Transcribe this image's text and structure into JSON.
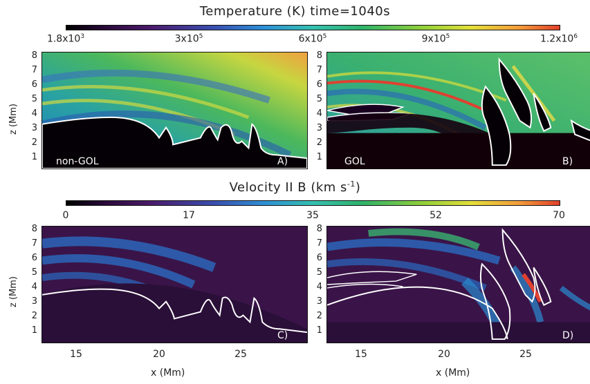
{
  "top": {
    "title": "Temperature (K) time=1040s",
    "ticks": [
      {
        "base": "1.8x10",
        "exp": "3"
      },
      {
        "base": "3x10",
        "exp": "5"
      },
      {
        "base": "6x10",
        "exp": "5"
      },
      {
        "base": "9x10",
        "exp": "5"
      },
      {
        "base": "1.2x10",
        "exp": "6"
      }
    ]
  },
  "bottom": {
    "title": "Velocity II B (km s",
    "title_exp": "-1",
    "title_end": ")",
    "ticks": [
      "0",
      "17",
      "35",
      "52",
      "70"
    ]
  },
  "panels": {
    "a_label": "non-GOL",
    "a_tag": "A)",
    "b_label": "GOL",
    "b_tag": "B)",
    "c_tag": "C)",
    "d_tag": "D)"
  },
  "axes": {
    "y_label": "z (Mm)",
    "x_label": "x (Mm)",
    "y_ticks": [
      "8",
      "7",
      "6",
      "5",
      "4",
      "3",
      "2",
      "1"
    ],
    "x_ticks": [
      "15",
      "20",
      "25"
    ]
  }
}
